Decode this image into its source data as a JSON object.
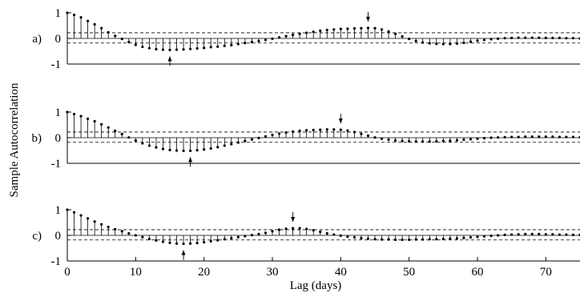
{
  "figure": {
    "ylabel": "Sample Autocorrelation",
    "xlabel": "Lag (days)"
  },
  "chart_data": [
    {
      "type": "stem",
      "panel_label": "a)",
      "xlim": [
        0,
        75
      ],
      "ylim": [
        -1,
        1
      ],
      "y_ticks": [
        "1",
        "0",
        "-1"
      ],
      "confidence_bounds": [
        0.22,
        -0.18
      ],
      "arrows": [
        {
          "lag": 15,
          "direction": "up"
        },
        {
          "lag": 44,
          "direction": "down"
        }
      ],
      "lags": [
        0,
        1,
        2,
        3,
        4,
        5,
        6,
        7,
        8,
        9,
        10,
        11,
        12,
        13,
        14,
        15,
        16,
        17,
        18,
        19,
        20,
        21,
        22,
        23,
        24,
        25,
        26,
        27,
        28,
        29,
        30,
        31,
        32,
        33,
        34,
        35,
        36,
        37,
        38,
        39,
        40,
        41,
        42,
        43,
        44,
        45,
        46,
        47,
        48,
        49,
        50,
        51,
        52,
        53,
        54,
        55,
        56,
        57,
        58,
        59,
        60,
        61,
        62,
        63,
        64,
        65,
        66,
        67,
        68,
        69,
        70,
        71,
        72,
        73,
        74,
        75
      ],
      "values": [
        1.0,
        0.92,
        0.82,
        0.68,
        0.55,
        0.4,
        0.24,
        0.1,
        -0.02,
        -0.14,
        -0.25,
        -0.33,
        -0.38,
        -0.42,
        -0.44,
        -0.45,
        -0.44,
        -0.43,
        -0.41,
        -0.39,
        -0.37,
        -0.34,
        -0.32,
        -0.29,
        -0.26,
        -0.22,
        -0.18,
        -0.14,
        -0.1,
        -0.06,
        -0.01,
        0.04,
        0.09,
        0.14,
        0.18,
        0.22,
        0.26,
        0.3,
        0.33,
        0.35,
        0.37,
        0.38,
        0.39,
        0.4,
        0.41,
        0.4,
        0.35,
        0.27,
        0.18,
        0.08,
        -0.02,
        -0.1,
        -0.16,
        -0.19,
        -0.21,
        -0.22,
        -0.22,
        -0.2,
        -0.17,
        -0.13,
        -0.09,
        -0.06,
        -0.03,
        -0.01,
        0.01,
        0.02,
        0.03,
        0.03,
        0.03,
        0.03,
        0.02,
        0.02,
        0.02,
        0.01,
        0.01,
        0.0
      ]
    },
    {
      "type": "stem",
      "panel_label": "b)",
      "xlim": [
        0,
        75
      ],
      "ylim": [
        -1,
        1
      ],
      "y_ticks": [
        "1",
        "0",
        "-1"
      ],
      "confidence_bounds": [
        0.22,
        -0.18
      ],
      "arrows": [
        {
          "lag": 18,
          "direction": "up"
        },
        {
          "lag": 40,
          "direction": "down"
        }
      ],
      "lags": [
        0,
        1,
        2,
        3,
        4,
        5,
        6,
        7,
        8,
        9,
        10,
        11,
        12,
        13,
        14,
        15,
        16,
        17,
        18,
        19,
        20,
        21,
        22,
        23,
        24,
        25,
        26,
        27,
        28,
        29,
        30,
        31,
        32,
        33,
        34,
        35,
        36,
        37,
        38,
        39,
        40,
        41,
        42,
        43,
        44,
        45,
        46,
        47,
        48,
        49,
        50,
        51,
        52,
        53,
        54,
        55,
        56,
        57,
        58,
        59,
        60,
        61,
        62,
        63,
        64,
        65,
        66,
        67,
        68,
        69,
        70,
        71,
        72,
        73,
        74,
        75
      ],
      "values": [
        1.0,
        0.92,
        0.84,
        0.74,
        0.64,
        0.52,
        0.4,
        0.27,
        0.14,
        0.01,
        -0.11,
        -0.22,
        -0.31,
        -0.38,
        -0.44,
        -0.48,
        -0.5,
        -0.51,
        -0.51,
        -0.49,
        -0.46,
        -0.42,
        -0.37,
        -0.31,
        -0.25,
        -0.19,
        -0.13,
        -0.07,
        -0.01,
        0.05,
        0.11,
        0.16,
        0.2,
        0.24,
        0.27,
        0.29,
        0.3,
        0.31,
        0.32,
        0.32,
        0.31,
        0.28,
        0.22,
        0.15,
        0.08,
        0.01,
        -0.04,
        -0.08,
        -0.11,
        -0.13,
        -0.14,
        -0.15,
        -0.15,
        -0.15,
        -0.14,
        -0.13,
        -0.12,
        -0.1,
        -0.08,
        -0.06,
        -0.04,
        -0.02,
        0.0,
        0.01,
        0.02,
        0.03,
        0.03,
        0.04,
        0.04,
        0.04,
        0.04,
        0.04,
        0.03,
        0.03,
        0.03,
        0.02
      ]
    },
    {
      "type": "stem",
      "panel_label": "c)",
      "xlim": [
        0,
        75
      ],
      "ylim": [
        -1,
        1
      ],
      "y_ticks": [
        "1",
        "0",
        "-1"
      ],
      "confidence_bounds": [
        0.22,
        -0.18
      ],
      "arrows": [
        {
          "lag": 17,
          "direction": "up"
        },
        {
          "lag": 33,
          "direction": "down"
        }
      ],
      "lags": [
        0,
        1,
        2,
        3,
        4,
        5,
        6,
        7,
        8,
        9,
        10,
        11,
        12,
        13,
        14,
        15,
        16,
        17,
        18,
        19,
        20,
        21,
        22,
        23,
        24,
        25,
        26,
        27,
        28,
        29,
        30,
        31,
        32,
        33,
        34,
        35,
        36,
        37,
        38,
        39,
        40,
        41,
        42,
        43,
        44,
        45,
        46,
        47,
        48,
        49,
        50,
        51,
        52,
        53,
        54,
        55,
        56,
        57,
        58,
        59,
        60,
        61,
        62,
        63,
        64,
        65,
        66,
        67,
        68,
        69,
        70,
        71,
        72,
        73,
        74,
        75
      ],
      "values": [
        1.0,
        0.9,
        0.78,
        0.66,
        0.54,
        0.43,
        0.33,
        0.24,
        0.16,
        0.08,
        0.0,
        -0.07,
        -0.14,
        -0.2,
        -0.25,
        -0.29,
        -0.32,
        -0.33,
        -0.32,
        -0.3,
        -0.27,
        -0.23,
        -0.19,
        -0.15,
        -0.11,
        -0.07,
        -0.03,
        0.01,
        0.05,
        0.1,
        0.16,
        0.22,
        0.26,
        0.28,
        0.28,
        0.25,
        0.2,
        0.14,
        0.08,
        0.03,
        -0.01,
        -0.05,
        -0.08,
        -0.11,
        -0.13,
        -0.15,
        -0.16,
        -0.16,
        -0.17,
        -0.17,
        -0.17,
        -0.16,
        -0.16,
        -0.15,
        -0.15,
        -0.14,
        -0.13,
        -0.12,
        -0.1,
        -0.08,
        -0.06,
        -0.04,
        -0.02,
        0.0,
        0.02,
        0.03,
        0.04,
        0.05,
        0.05,
        0.05,
        0.04,
        0.04,
        0.03,
        0.03,
        0.02,
        0.02
      ]
    }
  ],
  "x_axis": {
    "ticks": [
      0,
      10,
      20,
      30,
      40,
      50,
      60,
      70
    ],
    "tick_labels": [
      "0",
      "10",
      "20",
      "30",
      "40",
      "50",
      "60",
      "70"
    ]
  }
}
